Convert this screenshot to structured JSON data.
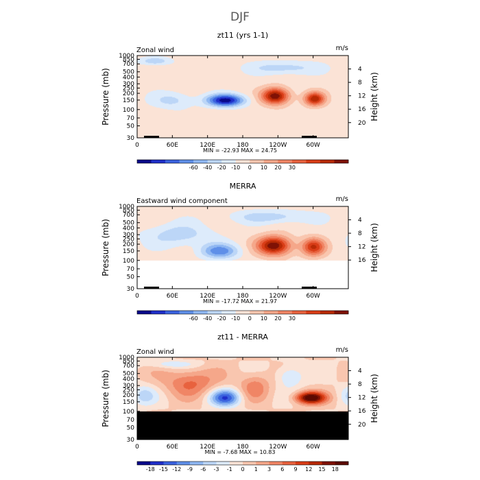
{
  "figure_title": "DJF",
  "chart_data": [
    {
      "type": "heatmap",
      "title": "zt11 (yrs 1-1)",
      "field_label": "Zonal wind",
      "units": "m/s",
      "ylabel": "Pressure (mb)",
      "y2label": "Height (km)",
      "y_ticks": [
        "30",
        "50",
        "70",
        "100",
        "150",
        "200",
        "250",
        "300",
        "400",
        "500",
        "700",
        "850",
        "1000"
      ],
      "y2_ticks": [
        "20",
        "16",
        "12",
        "8",
        "4"
      ],
      "x_ticks": [
        "0",
        "60E",
        "120E",
        "180",
        "120W",
        "60W"
      ],
      "stats": "MIN = -22.93   MAX =  24.75",
      "colorbar_levels": [
        "-60",
        "-40",
        "-20",
        "-10",
        "0",
        "10",
        "20",
        "30"
      ],
      "colors": [
        "#08088a",
        "#1f2fc9",
        "#3a62df",
        "#5f8fe8",
        "#8fb7f2",
        "#bcd6f7",
        "#ddebfb",
        "#fbe3d6",
        "#f9c6af",
        "#f5a78a",
        "#f08565",
        "#e8623e",
        "#d93d17",
        "#b72a05",
        "#7f1205"
      ],
      "ylim_mb": [
        1000,
        30
      ],
      "missing_above_mb": null,
      "min": -22.93,
      "max": 24.75,
      "blobs": [
        {
          "lon": 150,
          "p": 150,
          "value": -22.9,
          "spread_lon": 22,
          "spread_p": 0.18
        },
        {
          "lon": 235,
          "p": 180,
          "value": 24.7,
          "spread_lon": 16,
          "spread_p": 0.24
        },
        {
          "lon": 302,
          "p": 160,
          "value": 20.5,
          "spread_lon": 12,
          "spread_p": 0.2
        },
        {
          "lon": 60,
          "p": 150,
          "value": -6,
          "spread_lon": 25,
          "spread_p": 0.25
        },
        {
          "lon": 250,
          "p": 600,
          "value": -7,
          "spread_lon": 40,
          "spread_p": 0.2
        },
        {
          "lon": 30,
          "p": 800,
          "value": -8,
          "spread_lon": 18,
          "spread_p": 0.12
        }
      ]
    },
    {
      "type": "heatmap",
      "title": "MERRA",
      "field_label": "Eastward wind component",
      "units": "m/s",
      "ylabel": "Pressure (mb)",
      "y2label": "Height (km)",
      "y_ticks": [
        "30",
        "50",
        "70",
        "100",
        "150",
        "200",
        "250",
        "300",
        "400",
        "500",
        "700",
        "850",
        "1000"
      ],
      "y2_ticks": [
        "16",
        "12",
        "8",
        "4"
      ],
      "x_ticks": [
        "0",
        "60E",
        "120E",
        "180",
        "120W",
        "60W"
      ],
      "stats": "MIN = -17.72   MAX =  21.97",
      "colorbar_levels": [
        "-60",
        "-40",
        "-20",
        "-10",
        "0",
        "10",
        "20",
        "30"
      ],
      "colors": [
        "#08088a",
        "#1f2fc9",
        "#3a62df",
        "#5f8fe8",
        "#8fb7f2",
        "#bcd6f7",
        "#ddebfb",
        "#fbe3d6",
        "#f9c6af",
        "#f5a78a",
        "#f08565",
        "#e8623e",
        "#d93d17",
        "#b72a05",
        "#7f1205"
      ],
      "ylim_mb": [
        1000,
        30
      ],
      "missing_above_mb": 100,
      "min": -17.72,
      "max": 21.97,
      "blobs": [
        {
          "lon": 140,
          "p": 150,
          "value": -12,
          "spread_lon": 22,
          "spread_p": 0.22
        },
        {
          "lon": 233,
          "p": 190,
          "value": 21.97,
          "spread_lon": 20,
          "spread_p": 0.28
        },
        {
          "lon": 300,
          "p": 180,
          "value": 16,
          "spread_lon": 14,
          "spread_p": 0.26
        },
        {
          "lon": 70,
          "p": 300,
          "value": -6,
          "spread_lon": 40,
          "spread_p": 0.35
        },
        {
          "lon": 230,
          "p": 650,
          "value": -6,
          "spread_lon": 50,
          "spread_p": 0.2
        }
      ]
    },
    {
      "type": "heatmap",
      "title": "zt11 - MERRA",
      "field_label": "Zonal wind",
      "units": "m/s",
      "ylabel": "Pressure (mb)",
      "y2label": "Height (km)",
      "y_ticks": [
        "30",
        "50",
        "70",
        "100",
        "150",
        "200",
        "250",
        "300",
        "400",
        "500",
        "700",
        "850",
        "1000"
      ],
      "y2_ticks": [
        "20",
        "16",
        "12",
        "8",
        "4"
      ],
      "x_ticks": [
        "0",
        "60E",
        "120E",
        "180",
        "120W",
        "60W"
      ],
      "stats": "MIN =  -7.68   MAX =  10.83",
      "colorbar_levels": [
        "-18",
        "-15",
        "-12",
        "-9",
        "-6",
        "-3",
        "-1",
        "0",
        "1",
        "3",
        "6",
        "9",
        "12",
        "15",
        "18"
      ],
      "colors": [
        "#08088a",
        "#1f2fc9",
        "#3a62df",
        "#5f8fe8",
        "#8fb7f2",
        "#bcd6f7",
        "#ddebfb",
        "#fbe3d6",
        "#f9c6af",
        "#f5a78a",
        "#f08565",
        "#e8623e",
        "#d93d17",
        "#b72a05",
        "#7f1205",
        "#5c0a02"
      ],
      "ylim_mb": [
        1000,
        30
      ],
      "missing_above_mb": 100,
      "min": -7.68,
      "max": 10.83,
      "blobs": [
        {
          "lon": 150,
          "p": 180,
          "value": -7.6,
          "spread_lon": 18,
          "spread_p": 0.25
        },
        {
          "lon": 295,
          "p": 180,
          "value": 10.8,
          "spread_lon": 18,
          "spread_p": 0.18
        },
        {
          "lon": 90,
          "p": 350,
          "value": 4.5,
          "spread_lon": 30,
          "spread_p": 0.4
        },
        {
          "lon": 200,
          "p": 300,
          "value": 3.5,
          "spread_lon": 18,
          "spread_p": 0.4
        },
        {
          "lon": 10,
          "p": 200,
          "value": -3,
          "spread_lon": 15,
          "spread_p": 0.3
        },
        {
          "lon": 260,
          "p": 450,
          "value": -3.5,
          "spread_lon": 15,
          "spread_p": 0.3
        },
        {
          "lon": 60,
          "p": 750,
          "value": -2.5,
          "spread_lon": 30,
          "spread_p": 0.12
        }
      ]
    }
  ]
}
